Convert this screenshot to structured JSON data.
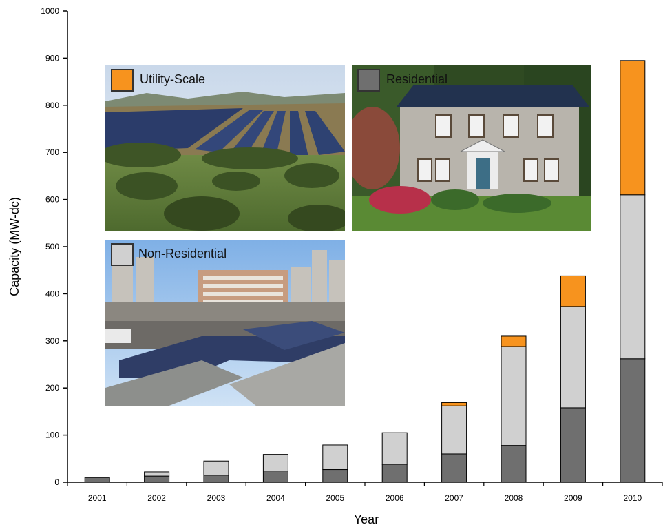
{
  "chart_data": {
    "type": "bar",
    "stacked": true,
    "categories": [
      "2001",
      "2002",
      "2003",
      "2004",
      "2005",
      "2006",
      "2007",
      "2008",
      "2009",
      "2010"
    ],
    "series": [
      {
        "name": "Residential",
        "color": "#6f6f6f",
        "values": [
          10,
          13,
          15,
          24,
          27,
          38,
          60,
          78,
          158,
          262
        ]
      },
      {
        "name": "Non-Residential",
        "color": "#d0d0d0",
        "values": [
          0,
          9,
          30,
          35,
          52,
          67,
          102,
          210,
          215,
          348
        ]
      },
      {
        "name": "Utility-Scale",
        "color": "#f7931e",
        "values": [
          0,
          0,
          0,
          0,
          0,
          0,
          7,
          22,
          65,
          285
        ]
      }
    ],
    "xlabel": "Year",
    "ylabel": "Capacity (MW-dc)",
    "ylim": [
      0,
      1000
    ],
    "yticks": [
      0,
      100,
      200,
      300,
      400,
      500,
      600,
      700,
      800,
      900,
      1000
    ],
    "grid": false,
    "legend": [
      {
        "label": "Utility-Scale",
        "color": "#f7931e",
        "photo": "solar-farm-photo"
      },
      {
        "label": "Residential",
        "color": "#6f6f6f",
        "photo": "house-photo"
      },
      {
        "label": "Non-Residential",
        "color": "#d0d0d0",
        "photo": "city-rooftop-photo"
      }
    ]
  }
}
